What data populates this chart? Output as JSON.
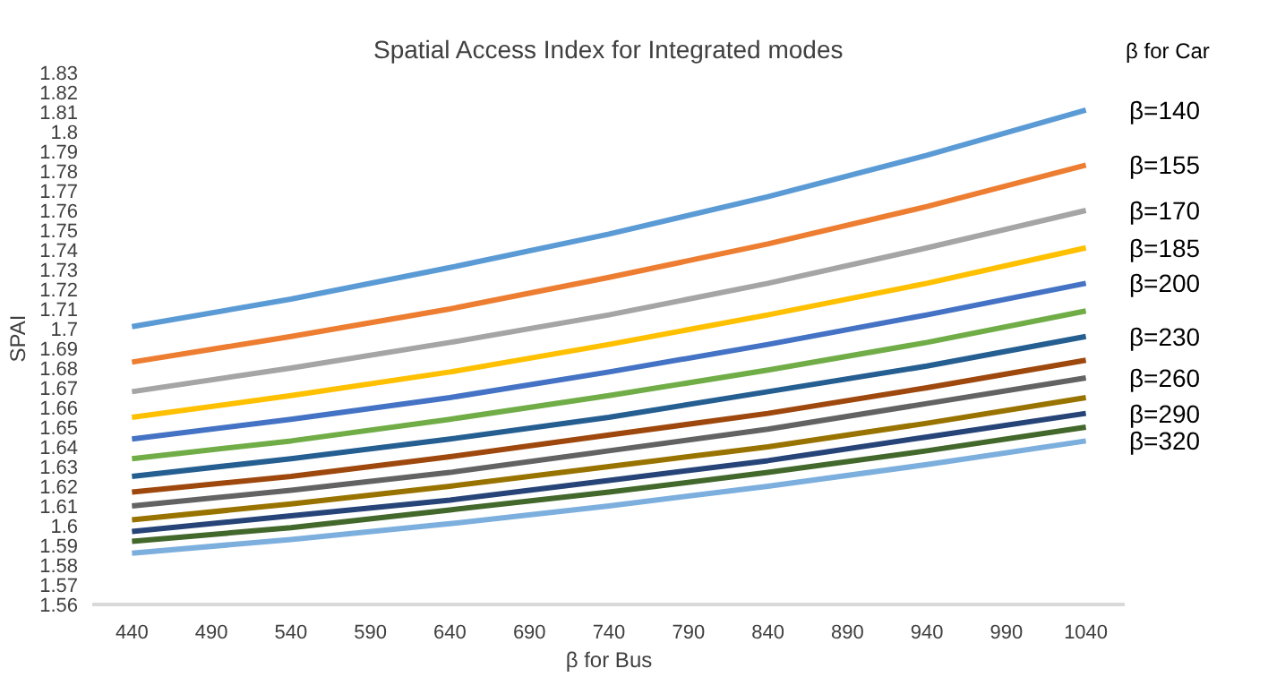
{
  "chart_data": {
    "type": "line",
    "title": "Spatial Access Index for Integrated modes",
    "xlabel": "β for Bus",
    "ylabel": "SPAI",
    "annotations": [
      "β for Car"
    ],
    "x": [
      440,
      540,
      640,
      740,
      840,
      940,
      1040
    ],
    "xlim": [
      415,
      1065
    ],
    "xticks": [
      440,
      490,
      540,
      590,
      640,
      690,
      740,
      790,
      840,
      890,
      940,
      990,
      1040
    ],
    "ylim": [
      1.56,
      1.83
    ],
    "yticks": [
      1.56,
      1.57,
      1.58,
      1.59,
      1.6,
      1.61,
      1.62,
      1.63,
      1.64,
      1.65,
      1.66,
      1.67,
      1.68,
      1.69,
      1.7,
      1.71,
      1.72,
      1.73,
      1.74,
      1.75,
      1.76,
      1.77,
      1.78,
      1.79,
      1.8,
      1.81,
      1.82,
      1.83
    ],
    "grid": false,
    "marker": "none",
    "line_style": "solid",
    "series": [
      {
        "name": "β=140",
        "color": "#5b9bd5",
        "values": [
          1.701,
          1.715,
          1.731,
          1.748,
          1.767,
          1.788,
          1.811
        ]
      },
      {
        "name": "β=155",
        "color": "#ed7d31",
        "values": [
          1.683,
          1.696,
          1.71,
          1.726,
          1.743,
          1.762,
          1.783
        ]
      },
      {
        "name": "β=170",
        "color": "#a5a5a5",
        "values": [
          1.668,
          1.68,
          1.693,
          1.707,
          1.723,
          1.741,
          1.76
        ]
      },
      {
        "name": "β=185",
        "color": "#ffc000",
        "values": [
          1.655,
          1.666,
          1.678,
          1.692,
          1.707,
          1.723,
          1.741
        ]
      },
      {
        "name": "β=200",
        "color": "#4472c4",
        "values": [
          1.644,
          1.654,
          1.665,
          1.678,
          1.692,
          1.707,
          1.723
        ]
      },
      {
        "color": "#70ad47",
        "values": [
          1.634,
          1.643,
          1.654,
          1.666,
          1.679,
          1.693,
          1.709
        ]
      },
      {
        "name": "β=230",
        "color": "#255e91",
        "values": [
          1.625,
          1.634,
          1.644,
          1.655,
          1.668,
          1.681,
          1.696
        ]
      },
      {
        "color": "#9e480e",
        "values": [
          1.617,
          1.625,
          1.635,
          1.646,
          1.657,
          1.67,
          1.684
        ]
      },
      {
        "name": "β=260",
        "color": "#636363",
        "values": [
          1.61,
          1.618,
          1.627,
          1.638,
          1.649,
          1.662,
          1.675
        ]
      },
      {
        "color": "#997300",
        "values": [
          1.603,
          1.611,
          1.62,
          1.63,
          1.64,
          1.652,
          1.665
        ]
      },
      {
        "name": "β=290",
        "color": "#264478",
        "values": [
          1.597,
          1.605,
          1.613,
          1.623,
          1.633,
          1.645,
          1.657
        ]
      },
      {
        "color": "#43682b",
        "values": [
          1.592,
          1.599,
          1.608,
          1.617,
          1.627,
          1.638,
          1.65
        ]
      },
      {
        "name": "β=320",
        "color": "#7cafdd",
        "values": [
          1.586,
          1.593,
          1.601,
          1.61,
          1.62,
          1.631,
          1.643
        ]
      }
    ]
  }
}
